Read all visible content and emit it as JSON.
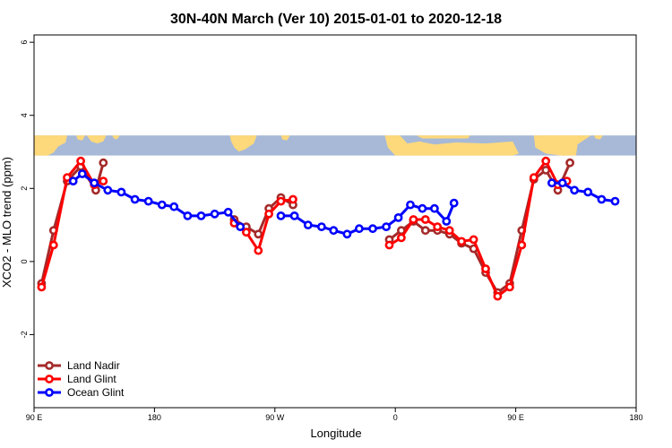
{
  "chart_data": {
    "type": "line",
    "title": "30N-40N March (Ver 10)   2015-01-01 to 2020-12-18",
    "xlabel": "Longitude",
    "ylabel": "XCO2 - MLO trend (ppm)",
    "xlim": [
      0,
      400
    ],
    "ylim": [
      -4,
      6.2
    ],
    "x_ticks": [
      {
        "value": 0,
        "label": "90 E"
      },
      {
        "value": 80,
        "label": "180"
      },
      {
        "value": 160,
        "label": "90 W"
      },
      {
        "value": 240,
        "label": "0"
      },
      {
        "value": 320,
        "label": "90 E"
      },
      {
        "value": 400,
        "label": "180"
      }
    ],
    "y_ticks": [
      {
        "value": -2,
        "label": "-2"
      },
      {
        "value": 0,
        "label": "0"
      },
      {
        "value": 2,
        "label": "2"
      },
      {
        "value": 4,
        "label": "4"
      },
      {
        "value": 6,
        "label": "6"
      }
    ],
    "map_band": {
      "y_from": 2.9,
      "y_to": 3.45,
      "ocean_color": "#a7b9d7",
      "land_color": "#fdd97c"
    },
    "legend_position": "bottom-left",
    "series": [
      {
        "name": "Land Nadir",
        "color": "#a52a2a",
        "segments": [
          [
            [
              5,
              -0.6
            ],
            [
              13,
              0.85
            ],
            [
              22,
              2.2
            ],
            [
              31,
              2.6
            ],
            [
              41,
              1.95
            ],
            [
              46,
              2.7
            ]
          ],
          [
            [
              133,
              1.15
            ],
            [
              141,
              0.95
            ],
            [
              149,
              0.75
            ],
            [
              156,
              1.45
            ],
            [
              164,
              1.75
            ],
            [
              172,
              1.55
            ]
          ],
          [
            [
              236,
              0.6
            ],
            [
              244,
              0.85
            ],
            [
              252,
              1.1
            ],
            [
              260,
              0.85
            ],
            [
              268,
              0.85
            ],
            [
              276,
              0.75
            ],
            [
              284,
              0.5
            ],
            [
              292,
              0.35
            ],
            [
              300,
              -0.3
            ],
            [
              308,
              -0.85
            ],
            [
              316,
              -0.6
            ],
            [
              324,
              0.85
            ],
            [
              332,
              2.25
            ],
            [
              340,
              2.5
            ],
            [
              348,
              1.95
            ],
            [
              356,
              2.7
            ]
          ]
        ]
      },
      {
        "name": "Land Glint",
        "color": "#ff0000",
        "segments": [
          [
            [
              5,
              -0.7
            ],
            [
              13,
              0.45
            ],
            [
              22,
              2.3
            ],
            [
              31,
              2.75
            ],
            [
              40,
              2.1
            ],
            [
              46,
              2.2
            ]
          ],
          [
            [
              133,
              1.05
            ],
            [
              141,
              0.8
            ],
            [
              149,
              0.3
            ],
            [
              156,
              1.3
            ],
            [
              164,
              1.65
            ],
            [
              172,
              1.7
            ]
          ],
          [
            [
              236,
              0.45
            ],
            [
              244,
              0.65
            ],
            [
              252,
              1.15
            ],
            [
              260,
              1.15
            ],
            [
              268,
              0.95
            ],
            [
              276,
              0.85
            ],
            [
              284,
              0.55
            ],
            [
              292,
              0.6
            ],
            [
              300,
              -0.2
            ],
            [
              308,
              -0.95
            ],
            [
              316,
              -0.7
            ],
            [
              324,
              0.45
            ],
            [
              332,
              2.3
            ],
            [
              340,
              2.75
            ],
            [
              348,
              2.1
            ],
            [
              354,
              2.2
            ]
          ]
        ]
      },
      {
        "name": "Ocean Glint",
        "color": "#0000ff",
        "segments": [
          [
            [
              26,
              2.2
            ],
            [
              32,
              2.4
            ],
            [
              40,
              2.15
            ],
            [
              49,
              1.95
            ],
            [
              58,
              1.9
            ],
            [
              67,
              1.7
            ],
            [
              76,
              1.65
            ],
            [
              85,
              1.55
            ],
            [
              93,
              1.5
            ],
            [
              102,
              1.25
            ],
            [
              111,
              1.25
            ],
            [
              120,
              1.3
            ],
            [
              129,
              1.35
            ],
            [
              137,
              0.95
            ]
          ],
          [
            [
              164,
              1.25
            ],
            [
              173,
              1.25
            ],
            [
              182,
              1.0
            ],
            [
              191,
              0.95
            ],
            [
              199,
              0.85
            ],
            [
              208,
              0.75
            ],
            [
              216,
              0.9
            ],
            [
              225,
              0.9
            ],
            [
              234,
              0.95
            ],
            [
              242,
              1.2
            ],
            [
              250,
              1.55
            ],
            [
              258,
              1.45
            ],
            [
              266,
              1.45
            ],
            [
              274,
              1.1
            ],
            [
              279,
              1.6
            ]
          ],
          [
            [
              344,
              2.15
            ],
            [
              351,
              2.15
            ],
            [
              359,
              1.95
            ],
            [
              368,
              1.9
            ],
            [
              377,
              1.7
            ],
            [
              386,
              1.65
            ]
          ]
        ]
      }
    ]
  }
}
